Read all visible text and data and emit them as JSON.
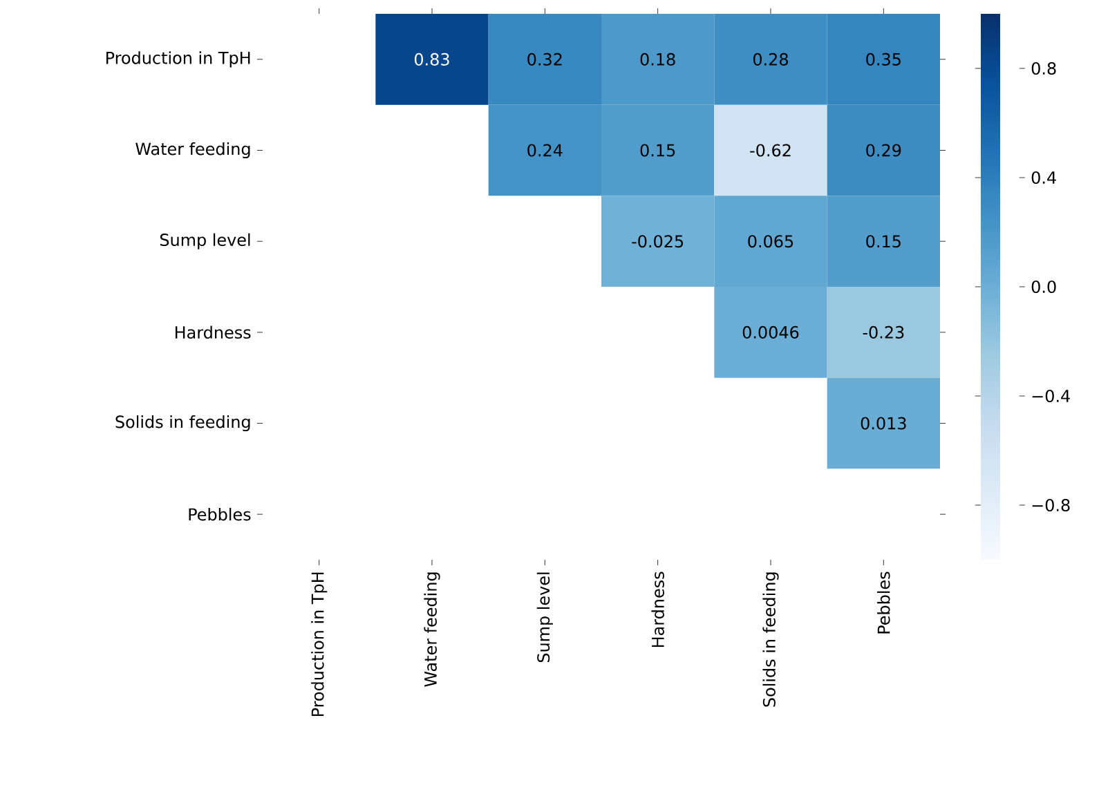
{
  "chart_data": {
    "type": "heatmap",
    "categories": [
      "Production in TpH",
      "Water feeding",
      "Sump level",
      "Hardness",
      "Solids in feeding",
      "Pebbles"
    ],
    "y_categories": [
      "Production in TpH",
      "Water feeding",
      "Sump level",
      "Hardness",
      "Solids in feeding",
      "Pebbles"
    ],
    "cells": [
      [
        null,
        0.83,
        0.32,
        0.18,
        0.28,
        0.35
      ],
      [
        null,
        null,
        0.24,
        0.15,
        -0.62,
        0.29
      ],
      [
        null,
        null,
        null,
        -0.025,
        0.065,
        0.15
      ],
      [
        null,
        null,
        null,
        null,
        0.0046,
        -0.23
      ],
      [
        null,
        null,
        null,
        null,
        null,
        0.013
      ],
      [
        null,
        null,
        null,
        null,
        null,
        null
      ]
    ],
    "clim": [
      -1,
      1
    ],
    "cticks": [
      {
        "value": 0.8,
        "label": "0.8"
      },
      {
        "value": 0.4,
        "label": "0.4"
      },
      {
        "value": 0.0,
        "label": "0.0"
      },
      {
        "value": -0.4,
        "label": "−0.4"
      },
      {
        "value": -0.8,
        "label": "−0.8"
      }
    ],
    "data_labels": true
  }
}
